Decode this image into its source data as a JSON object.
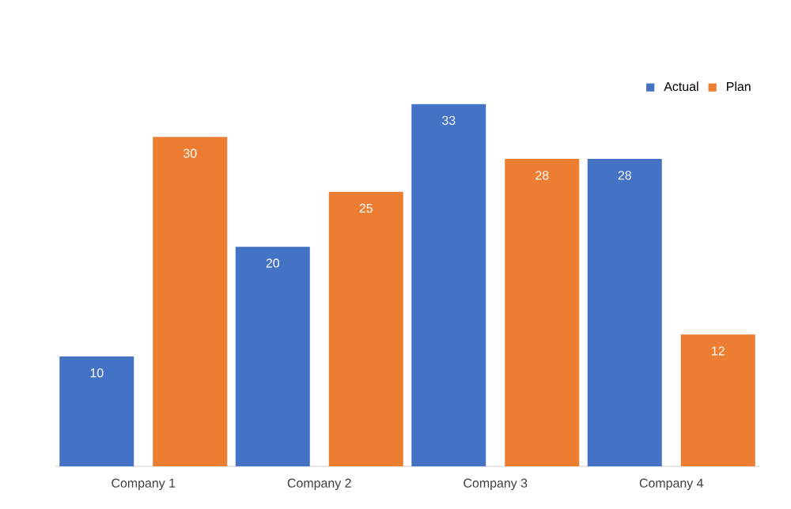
{
  "chart_data": {
    "type": "bar",
    "categories": [
      "Company 1",
      "Company 2",
      "Company 3",
      "Company 4"
    ],
    "series": [
      {
        "name": "Actual",
        "color": "#4472c4",
        "values": [
          10,
          20,
          33,
          28
        ]
      },
      {
        "name": "Plan",
        "color": "#ed7d31",
        "values": [
          30,
          25,
          28,
          12
        ]
      }
    ],
    "data_labels": true,
    "legend": "top right"
  }
}
